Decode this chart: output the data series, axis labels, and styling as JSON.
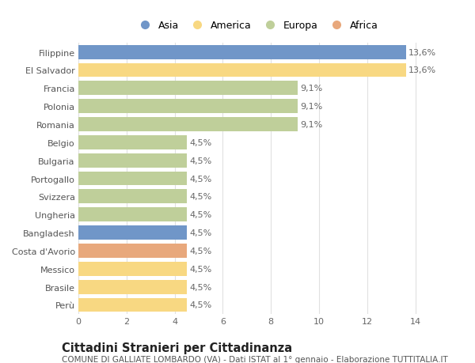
{
  "categories": [
    "Filippine",
    "El Salvador",
    "Francia",
    "Polonia",
    "Romania",
    "Belgio",
    "Bulgaria",
    "Portogallo",
    "Svizzera",
    "Ungheria",
    "Bangladesh",
    "Costa d'Avorio",
    "Messico",
    "Brasile",
    "Perù"
  ],
  "values": [
    13.6,
    13.6,
    9.1,
    9.1,
    9.1,
    4.5,
    4.5,
    4.5,
    4.5,
    4.5,
    4.5,
    4.5,
    4.5,
    4.5,
    4.5
  ],
  "labels": [
    "13,6%",
    "13,6%",
    "9,1%",
    "9,1%",
    "9,1%",
    "4,5%",
    "4,5%",
    "4,5%",
    "4,5%",
    "4,5%",
    "4,5%",
    "4,5%",
    "4,5%",
    "4,5%",
    "4,5%"
  ],
  "continents": [
    "Asia",
    "America",
    "Europa",
    "Europa",
    "Europa",
    "Europa",
    "Europa",
    "Europa",
    "Europa",
    "Europa",
    "Asia",
    "Africa",
    "America",
    "America",
    "America"
  ],
  "colors": {
    "Asia": "#7096c8",
    "America": "#f8d882",
    "Europa": "#bfcf9a",
    "Africa": "#e8a87c"
  },
  "xlim": [
    0,
    14.8
  ],
  "xticks": [
    0,
    2,
    4,
    6,
    8,
    10,
    12,
    14
  ],
  "title": "Cittadini Stranieri per Cittadinanza",
  "subtitle": "COMUNE DI GALLIATE LOMBARDO (VA) - Dati ISTAT al 1° gennaio - Elaborazione TUTTITALIA.IT",
  "bg_color": "#ffffff",
  "grid_color": "#e0e0e0",
  "bar_height": 0.78,
  "label_fontsize": 8,
  "tick_fontsize": 8,
  "title_fontsize": 10.5,
  "subtitle_fontsize": 7.5,
  "legend_entries": [
    "Asia",
    "America",
    "Europa",
    "Africa"
  ]
}
